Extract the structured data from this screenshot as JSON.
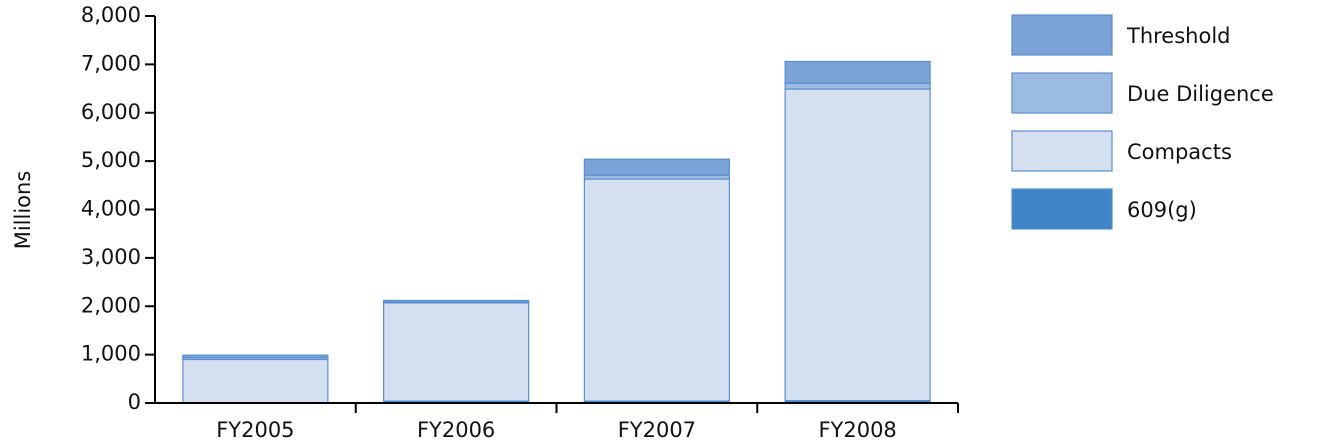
{
  "chart_data": {
    "type": "stacked-bar",
    "y_label": "Millions",
    "categories": [
      "FY2005",
      "FY2006",
      "FY2007",
      "FY2008"
    ],
    "series": [
      {
        "name": "609(g)",
        "color": "#3f84c5",
        "values": [
          0,
          40,
          40,
          50
        ]
      },
      {
        "name": "Compacts",
        "color": "#d4dff0",
        "values": [
          900,
          2030,
          4590,
          6440
        ]
      },
      {
        "name": "Due Diligence",
        "color": "#9cbbe2",
        "values": [
          40,
          20,
          80,
          120
        ]
      },
      {
        "name": "Threshold",
        "color": "#7ba3d6",
        "values": [
          50,
          30,
          330,
          450
        ]
      }
    ],
    "ylim": [
      0,
      8000
    ],
    "yticks": [
      0,
      {
        "value": 1000,
        "label": "1,000"
      },
      {
        "value": 2000,
        "label": "2,000"
      },
      {
        "value": 3000,
        "label": "3,000"
      },
      {
        "value": 4000,
        "label": "4,000"
      },
      {
        "value": 5000,
        "label": "5,000"
      },
      {
        "value": 6000,
        "label": "6,000"
      },
      {
        "value": 7000,
        "label": "7,000"
      },
      {
        "value": 8000,
        "label": "8,000"
      }
    ]
  }
}
